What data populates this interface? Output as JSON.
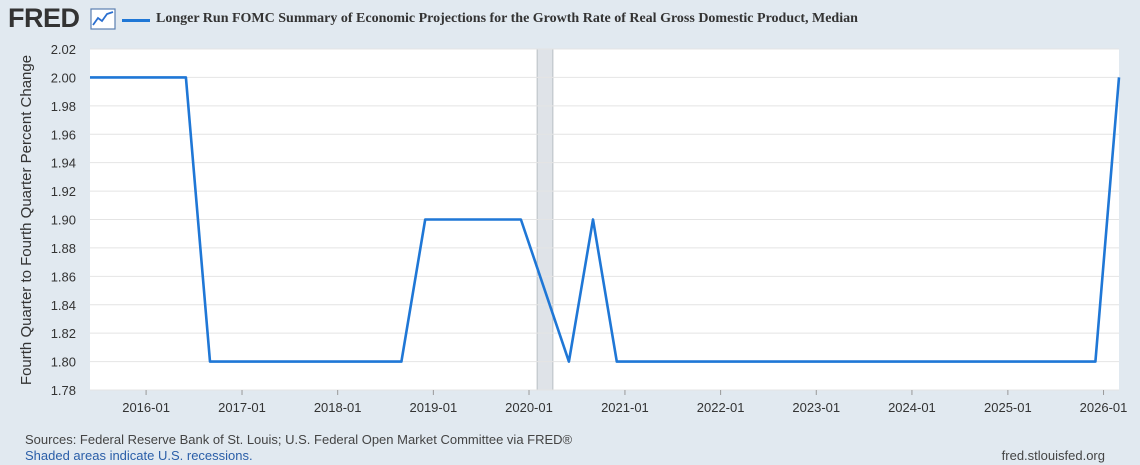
{
  "header": {
    "logo": "FRED",
    "logo_icon": "line-chart-icon",
    "series_title": "Longer Run FOMC Summary of Economic Projections for the Growth Rate of Real Gross Domestic Product, Median"
  },
  "footer": {
    "sources": "Sources: Federal Reserve Bank of St. Louis; U.S. Federal Open Market Committee via FRED®",
    "recession_note": "Shaded areas indicate U.S. recessions.",
    "site": "fred.stlouisfed.org"
  },
  "colors": {
    "series": "#1f77d6",
    "background": "#e1e9f0",
    "plot": "#ffffff",
    "recession": "#dfe3e8"
  },
  "chart_data": {
    "type": "line",
    "title": "Longer Run FOMC Summary of Economic Projections for the Growth Rate of Real Gross Domestic Product, Median",
    "ylabel": "Fourth Quarter to Fourth Quarter Percent Change",
    "xlabel": "",
    "ylim": [
      1.78,
      2.02
    ],
    "yticks": [
      "1.78",
      "1.80",
      "1.82",
      "1.84",
      "1.86",
      "1.88",
      "1.90",
      "1.92",
      "1.94",
      "1.96",
      "1.98",
      "2.00",
      "2.02"
    ],
    "xlim": [
      "2015-06-01",
      "2026-03-01"
    ],
    "xticks": [
      {
        "date": "2016-01-01",
        "label": "2016-01"
      },
      {
        "date": "2017-01-01",
        "label": "2017-01"
      },
      {
        "date": "2018-01-01",
        "label": "2018-01"
      },
      {
        "date": "2019-01-01",
        "label": "2019-01"
      },
      {
        "date": "2020-01-01",
        "label": "2020-01"
      },
      {
        "date": "2021-01-01",
        "label": "2021-01"
      },
      {
        "date": "2022-01-01",
        "label": "2022-01"
      },
      {
        "date": "2023-01-01",
        "label": "2023-01"
      },
      {
        "date": "2024-01-01",
        "label": "2024-01"
      },
      {
        "date": "2025-01-01",
        "label": "2025-01"
      },
      {
        "date": "2026-01-01",
        "label": "2026-01"
      }
    ],
    "grid": true,
    "recessions": [
      {
        "start": "2020-02-01",
        "end": "2020-04-01"
      }
    ],
    "series": [
      {
        "name": "Longer Run FOMC Summary of Economic Projections for the Growth Rate of Real Gross Domestic Product, Median",
        "x": [
          "2015-06-01",
          "2016-06-01",
          "2016-09-01",
          "2018-09-01",
          "2018-12-01",
          "2019-12-01",
          "2020-06-01",
          "2020-09-01",
          "2020-12-01",
          "2025-12-01",
          "2026-03-01"
        ],
        "y": [
          2.0,
          2.0,
          1.8,
          1.8,
          1.9,
          1.9,
          1.8,
          1.9,
          1.8,
          1.8,
          2.0
        ]
      }
    ]
  }
}
